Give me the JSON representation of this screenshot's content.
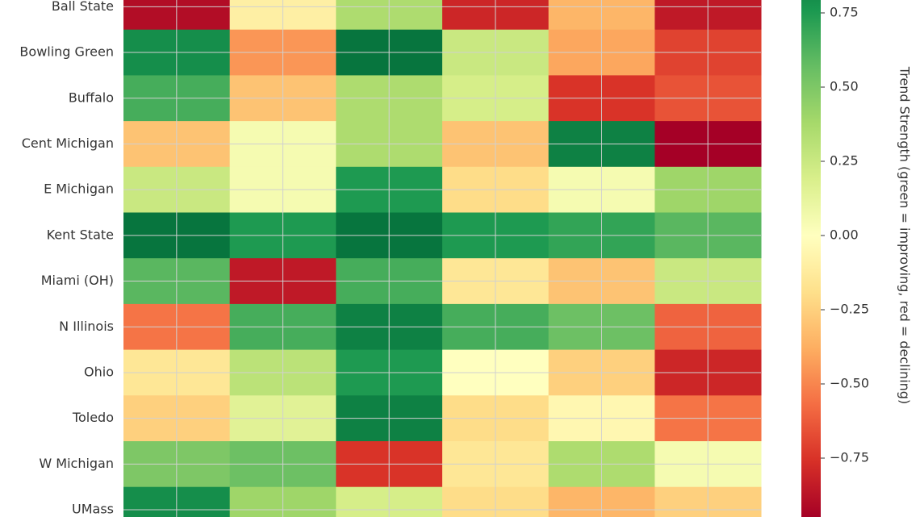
{
  "chart_data": {
    "type": "heatmap",
    "colormap": "RdYlGn",
    "categories": [
      "Ball State",
      "Bowling Green",
      "Buffalo",
      "Cent Michigan",
      "E Michigan",
      "Kent State",
      "Miami (OH)",
      "N Illinois",
      "Ohio",
      "Toledo",
      "W Michigan",
      "UMass"
    ],
    "values": [
      [
        -0.9,
        -0.1,
        0.35,
        -0.8,
        -0.35,
        -0.85
      ],
      [
        0.8,
        -0.45,
        0.9,
        0.25,
        -0.4,
        -0.7
      ],
      [
        0.65,
        -0.3,
        0.35,
        0.2,
        -0.75,
        -0.65
      ],
      [
        -0.3,
        0.05,
        0.35,
        -0.3,
        0.85,
        -0.95
      ],
      [
        0.25,
        0.05,
        0.75,
        -0.2,
        0.05,
        0.4
      ],
      [
        0.9,
        0.75,
        0.9,
        0.75,
        0.7,
        0.6
      ],
      [
        0.6,
        -0.85,
        0.65,
        -0.15,
        -0.3,
        0.25
      ],
      [
        -0.55,
        0.65,
        0.85,
        0.65,
        0.55,
        -0.6
      ],
      [
        -0.15,
        0.3,
        0.75,
        0.0,
        -0.25,
        -0.8
      ],
      [
        -0.25,
        0.15,
        0.85,
        -0.2,
        -0.05,
        -0.55
      ],
      [
        0.5,
        0.55,
        -0.75,
        -0.15,
        0.35,
        0.05
      ],
      [
        0.8,
        0.4,
        0.2,
        -0.2,
        -0.35,
        -0.25
      ]
    ],
    "clim": [
      -0.95,
      0.95
    ],
    "colorbar_ticks": [
      {
        "value": -0.75,
        "label": "−0.75"
      },
      {
        "value": -0.5,
        "label": "−0.50"
      },
      {
        "value": -0.25,
        "label": "−0.25"
      },
      {
        "value": 0,
        "label": "0.00"
      },
      {
        "value": 0.25,
        "label": "0.25"
      },
      {
        "value": 0.5,
        "label": "0.50"
      },
      {
        "value": 0.75,
        "label": "0.75"
      }
    ],
    "colorbar_label": "Trend Strength (green = improving, red = declining)",
    "grid": true
  }
}
